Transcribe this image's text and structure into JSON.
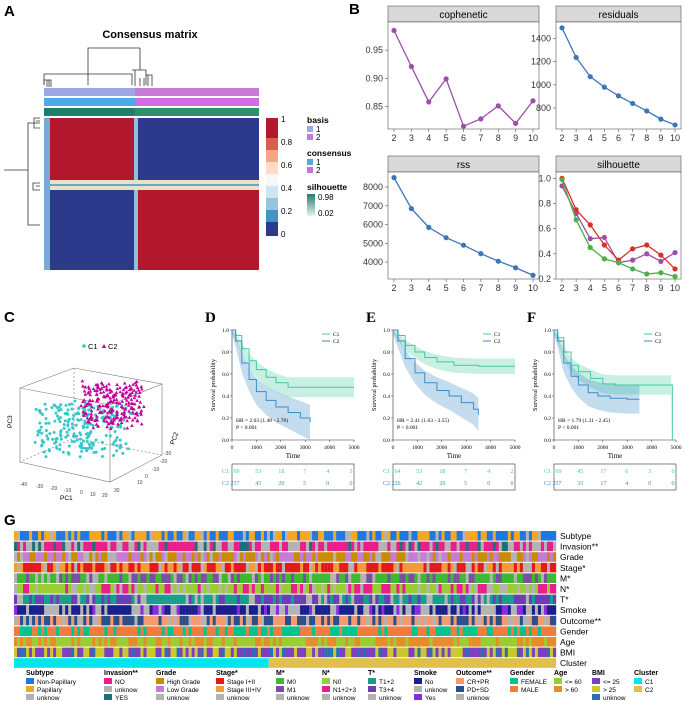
{
  "panels": {
    "a": "A",
    "b": "B",
    "c": "C",
    "d": "D",
    "e": "E",
    "f": "F",
    "g": "G"
  },
  "colors": {
    "heat_high": "#b2182b",
    "heat_low": "#2d3a8c",
    "purple_line": "#9b4fa8",
    "blue_line": "#3c76b7",
    "c1": "#44c9a0",
    "c2": "#3a8fc7",
    "point_c1": "#37c8c9",
    "point_c2": "#c3009a",
    "cluster_c1": "#00e5ee",
    "cluster_c2": "#e1c04a"
  },
  "consensus": {
    "title": "Consensus matrix",
    "legend": {
      "basis_title": "basis",
      "consensus_title": "consensus",
      "silhouette_title": "silhouette",
      "basis_items": [
        "1",
        "2"
      ],
      "consensus_items": [
        "1",
        "2"
      ],
      "silhouette_ticks": [
        "0.98",
        "0.02"
      ],
      "scale_ticks": [
        "1",
        "0.8",
        "0.6",
        "0.4",
        "0.2",
        "0"
      ]
    }
  },
  "chart_data": [
    {
      "id": "cophenetic",
      "type": "line",
      "title": "cophenetic",
      "x": [
        2,
        3,
        4,
        5,
        6,
        7,
        8,
        9,
        10
      ],
      "values": [
        0.985,
        0.921,
        0.858,
        0.899,
        0.815,
        0.828,
        0.851,
        0.82,
        0.86
      ],
      "ylim": [
        0.81,
        1.0
      ],
      "yticks": [
        "0.95",
        "0.90",
        "0.85"
      ],
      "xticks": [
        "2",
        "3",
        "4",
        "5",
        "6",
        "7",
        "8",
        "9",
        "10"
      ]
    },
    {
      "id": "residuals",
      "type": "line",
      "title": "residuals",
      "x": [
        2,
        3,
        4,
        5,
        6,
        7,
        8,
        9,
        10
      ],
      "values": [
        1490,
        1235,
        1070,
        980,
        905,
        840,
        775,
        705,
        655
      ],
      "ylim": [
        620,
        1540
      ],
      "yticks": [
        "1400",
        "1200",
        "1000",
        "800"
      ],
      "xticks": [
        "2",
        "3",
        "4",
        "5",
        "6",
        "7",
        "8",
        "9",
        "10"
      ]
    },
    {
      "id": "rss",
      "type": "line",
      "title": "rss",
      "x": [
        2,
        3,
        4,
        5,
        6,
        7,
        8,
        9,
        10
      ],
      "values": [
        8500,
        6850,
        5850,
        5300,
        4900,
        4450,
        4050,
        3700,
        3300
      ],
      "ylim": [
        3100,
        8800
      ],
      "yticks": [
        "8000",
        "7000",
        "6000",
        "5000",
        "4000"
      ],
      "xticks": [
        "2",
        "3",
        "4",
        "5",
        "6",
        "7",
        "8",
        "9",
        "10"
      ]
    },
    {
      "id": "silhouette",
      "type": "line",
      "title": "silhouette",
      "x": [
        2,
        3,
        4,
        5,
        6,
        7,
        8,
        9,
        10
      ],
      "series": [
        {
          "name": "basis",
          "color": "#9b4fa8",
          "values": [
            0.94,
            0.72,
            0.52,
            0.53,
            0.33,
            0.35,
            0.4,
            0.34,
            0.41
          ]
        },
        {
          "name": "consensus",
          "color": "#d73027",
          "values": [
            1.0,
            0.75,
            0.63,
            0.47,
            0.35,
            0.44,
            0.47,
            0.39,
            0.28
          ]
        },
        {
          "name": "silhouette",
          "color": "#4daf4a",
          "values": [
            0.99,
            0.67,
            0.45,
            0.36,
            0.33,
            0.28,
            0.24,
            0.25,
            0.22
          ]
        }
      ],
      "ylim": [
        0.2,
        1.05
      ],
      "yticks": [
        "1.0",
        "0.8",
        "0.6",
        "0.4",
        "0.2"
      ],
      "xticks": [
        "2",
        "3",
        "4",
        "5",
        "6",
        "7",
        "8",
        "9",
        "10"
      ]
    }
  ],
  "pca": {
    "legend": [
      "C1",
      "C2"
    ],
    "axes": [
      "PC1",
      "PC2",
      "PC3"
    ]
  },
  "km": [
    {
      "id": "D",
      "ylabel": "Survival probability",
      "xlabel": "Time",
      "legend": [
        "C1",
        "C2"
      ],
      "hr": "HR = 2.03 (1.48 - 2.78)",
      "p": "P < 0.001",
      "xticks": [
        "0",
        "1000",
        "2000",
        "3000",
        "4000",
        "5000"
      ],
      "yticks": [
        "0.0",
        "0.2",
        "0.4",
        "0.6",
        "0.8",
        "1.0"
      ],
      "risk": {
        "C1": [
          "169",
          "53",
          "18",
          "7",
          "4",
          "3"
        ],
        "C2": [
          "237",
          "43",
          "20",
          "5",
          "0",
          "0"
        ]
      },
      "c1": [
        [
          0,
          1
        ],
        [
          150,
          0.95
        ],
        [
          400,
          0.83
        ],
        [
          700,
          0.72
        ],
        [
          1000,
          0.64
        ],
        [
          1400,
          0.57
        ],
        [
          1800,
          0.52
        ],
        [
          2300,
          0.48
        ],
        [
          3000,
          0.48
        ],
        [
          4000,
          0.48
        ],
        [
          5000,
          0.48
        ]
      ],
      "c2": [
        [
          0,
          1
        ],
        [
          150,
          0.9
        ],
        [
          400,
          0.7
        ],
        [
          700,
          0.55
        ],
        [
          1000,
          0.44
        ],
        [
          1400,
          0.36
        ],
        [
          1800,
          0.3
        ],
        [
          2300,
          0.25
        ],
        [
          2800,
          0.2
        ],
        [
          3200,
          0.16
        ]
      ]
    },
    {
      "id": "E",
      "ylabel": "Survival probability",
      "xlabel": "Time",
      "legend": [
        "C1",
        "C2"
      ],
      "hr": "HR = 2.41 (1.63 - 3.55)",
      "p": "P < 0.001",
      "xticks": [
        "0",
        "1000",
        "2000",
        "3000",
        "4000",
        "5000"
      ],
      "yticks": [
        "0.0",
        "0.2",
        "0.4",
        "0.6",
        "0.8",
        "1.0"
      ],
      "risk": {
        "C1": [
          "164",
          "53",
          "18",
          "7",
          "4",
          "2"
        ],
        "C2": [
          "226",
          "42",
          "20",
          "5",
          "0",
          "0"
        ]
      },
      "c1": [
        [
          0,
          1
        ],
        [
          200,
          0.95
        ],
        [
          500,
          0.86
        ],
        [
          900,
          0.8
        ],
        [
          1300,
          0.75
        ],
        [
          1800,
          0.71
        ],
        [
          2500,
          0.68
        ],
        [
          3500,
          0.67
        ],
        [
          5000,
          0.67
        ]
      ],
      "c2": [
        [
          0,
          1
        ],
        [
          200,
          0.9
        ],
        [
          500,
          0.74
        ],
        [
          900,
          0.61
        ],
        [
          1300,
          0.52
        ],
        [
          1800,
          0.45
        ],
        [
          2300,
          0.4
        ],
        [
          2800,
          0.34
        ],
        [
          3300,
          0.28
        ],
        [
          3500,
          0.23
        ]
      ]
    },
    {
      "id": "F",
      "ylabel": "Survival probability",
      "xlabel": "Time",
      "legend": [
        "C1",
        "C2"
      ],
      "hr": "HR = 1.79 (1.31 - 2.45)",
      "p": "P < 0.001",
      "xticks": [
        "0",
        "1000",
        "2000",
        "3000",
        "4000",
        "5000"
      ],
      "yticks": [
        "0.0",
        "0.2",
        "0.4",
        "0.6",
        "0.8",
        "1.0"
      ],
      "risk": {
        "C1": [
          "169",
          "45",
          "17",
          "6",
          "3",
          "0"
        ],
        "C2": [
          "237",
          "33",
          "17",
          "4",
          "0",
          "0"
        ]
      },
      "c1": [
        [
          0,
          1
        ],
        [
          150,
          0.93
        ],
        [
          400,
          0.8
        ],
        [
          700,
          0.68
        ],
        [
          1000,
          0.62
        ],
        [
          1500,
          0.56
        ],
        [
          2000,
          0.51
        ],
        [
          2500,
          0.5
        ],
        [
          4800,
          0.5
        ],
        [
          4850,
          0.0
        ]
      ],
      "c2": [
        [
          0,
          1
        ],
        [
          150,
          0.9
        ],
        [
          400,
          0.7
        ],
        [
          700,
          0.58
        ],
        [
          1000,
          0.5
        ],
        [
          1400,
          0.43
        ],
        [
          1800,
          0.4
        ],
        [
          2300,
          0.38
        ],
        [
          3000,
          0.37
        ],
        [
          3500,
          0.37
        ]
      ]
    }
  ],
  "tracks": {
    "rows": [
      "Subtype",
      "Invasion**",
      "Grade",
      "Stage*",
      "M*",
      "N*",
      "T*",
      "Smoke",
      "Outcome**",
      "Gender",
      "Age",
      "BMI",
      "Cluster"
    ]
  },
  "legend": [
    {
      "title": "Subtype",
      "items": [
        [
          "Non-Papillary",
          "#1f78e0"
        ],
        [
          "Papillary",
          "#f5a623"
        ],
        [
          "unknow",
          "#b3b3b3"
        ]
      ]
    },
    {
      "title": "Invasion**",
      "items": [
        [
          "NO",
          "#e91e8c"
        ],
        [
          "unknow",
          "#b3b3b3"
        ],
        [
          "YES",
          "#1f6f7a"
        ]
      ]
    },
    {
      "title": "Grade",
      "items": [
        [
          "High Grade",
          "#c78c00"
        ],
        [
          "Low Grade",
          "#c77bd6"
        ],
        [
          "unknow",
          "#b3b3b3"
        ]
      ]
    },
    {
      "title": "Stage*",
      "items": [
        [
          "Stage I+II",
          "#e31a1c"
        ],
        [
          "Stage III+IV",
          "#f29b3a"
        ],
        [
          "unknow",
          "#b3b3b3"
        ]
      ]
    },
    {
      "title": "M*",
      "items": [
        [
          "M0",
          "#3cba2f"
        ],
        [
          "M1",
          "#7a4fa3"
        ],
        [
          "unknow",
          "#b3b3b3"
        ]
      ]
    },
    {
      "title": "N*",
      "items": [
        [
          "N0",
          "#9acd32"
        ],
        [
          "N1+2+3",
          "#e91e8c"
        ],
        [
          "unknow",
          "#b3b3b3"
        ]
      ]
    },
    {
      "title": "T*",
      "items": [
        [
          "T1+2",
          "#1a9c8c"
        ],
        [
          "T3+4",
          "#6a3fb5"
        ],
        [
          "unknow",
          "#b3b3b3"
        ]
      ]
    },
    {
      "title": "Smoke",
      "items": [
        [
          "No",
          "#1a1f8c"
        ],
        [
          "unknow",
          "#b3b3b3"
        ],
        [
          "Yes",
          "#8a2be2"
        ]
      ]
    },
    {
      "title": "Outcome**",
      "items": [
        [
          "CR+PR",
          "#f59a6e"
        ],
        [
          "PD+SD",
          "#2c4f8c"
        ],
        [
          "unknow",
          "#b3b3b3"
        ]
      ]
    },
    {
      "title": "Gender",
      "items": [
        [
          "FEMALE",
          "#00c48c"
        ],
        [
          "MALE",
          "#f07b3f"
        ]
      ]
    },
    {
      "title": "Age",
      "items": [
        [
          "<= 60",
          "#9acd32"
        ],
        [
          "> 60",
          "#e88c2a"
        ]
      ]
    },
    {
      "title": "BMI",
      "items": [
        [
          "<= 25",
          "#7b3fbf"
        ],
        [
          "> 25",
          "#c9c92c"
        ],
        [
          "unknow",
          "#2a6fb0"
        ]
      ]
    },
    {
      "title": "Cluster",
      "items": [
        [
          "C1",
          "#00e5ee"
        ],
        [
          "C2",
          "#e1c04a"
        ]
      ]
    }
  ]
}
